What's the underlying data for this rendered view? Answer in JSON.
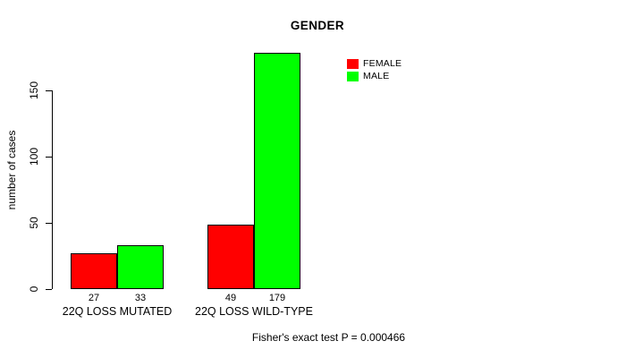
{
  "chart_data": {
    "type": "bar",
    "title": "GENDER",
    "xlabel": "",
    "ylabel": "number of cases",
    "categories": [
      "22Q LOSS MUTATED",
      "22Q LOSS WILD-TYPE"
    ],
    "series": [
      {
        "name": "FEMALE",
        "color": "#ff0000",
        "values": [
          27,
          49
        ]
      },
      {
        "name": "MALE",
        "color": "#00ff00",
        "values": [
          33,
          179
        ]
      }
    ],
    "bar_value_labels": [
      [
        "27",
        "33"
      ],
      [
        "49",
        "179"
      ]
    ],
    "yticks": [
      0,
      50,
      100,
      150
    ],
    "ylim": [
      0,
      182
    ],
    "grid": false,
    "legend_position": "top-right",
    "annotation": "Fisher's exact test P = 0.000466",
    "bar_border_color": "#000000",
    "background_color": "#ffffff"
  }
}
